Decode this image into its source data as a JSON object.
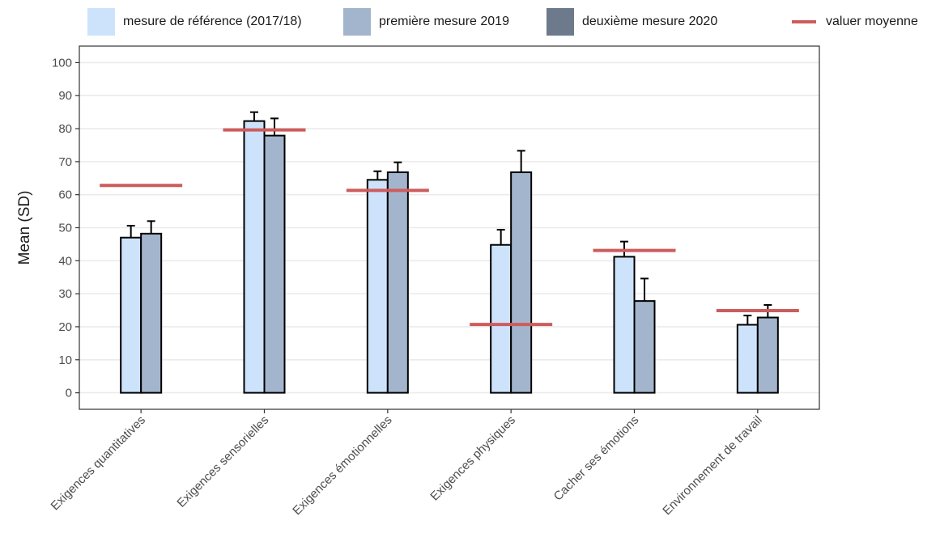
{
  "chart_data": {
    "type": "bar",
    "ylabel": "Mean (SD)",
    "xlabel": "",
    "ylim": [
      -5,
      105
    ],
    "yticks": [
      0,
      10,
      20,
      30,
      40,
      50,
      60,
      70,
      80,
      90,
      100
    ],
    "grid": true,
    "legend_position": "top",
    "categories": [
      "Exigences quantitatives",
      "Exigences sensorielles",
      "Exigences émotionnelles",
      "Exigences physiques",
      "Cacher ses émotions",
      "Environnement de travail"
    ],
    "series": [
      {
        "name": "mesure de référence (2017/18)",
        "color": "#cde3fb",
        "values": [
          47,
          82.3,
          64.5,
          44.8,
          41.2,
          20.6
        ],
        "error": [
          3.6,
          2.7,
          2.6,
          4.6,
          4.6,
          2.8
        ]
      },
      {
        "name": "première mesure 2019",
        "color": "#a3b5cc",
        "values": [
          48.2,
          77.9,
          66.8,
          66.8,
          27.8,
          22.8
        ],
        "error": [
          3.8,
          5.2,
          3.0,
          6.5,
          6.8,
          3.8
        ]
      },
      {
        "name": "deuxième mesure 2020",
        "color": "#6c7a8c",
        "values": [
          null,
          null,
          null,
          null,
          null,
          null
        ],
        "error": [
          null,
          null,
          null,
          null,
          null,
          null
        ]
      }
    ],
    "reference_line": {
      "name": "valuer moyenne",
      "color": "#cd5c5c",
      "values": [
        62.8,
        79.6,
        61.3,
        20.7,
        43.1,
        24.9
      ]
    }
  }
}
